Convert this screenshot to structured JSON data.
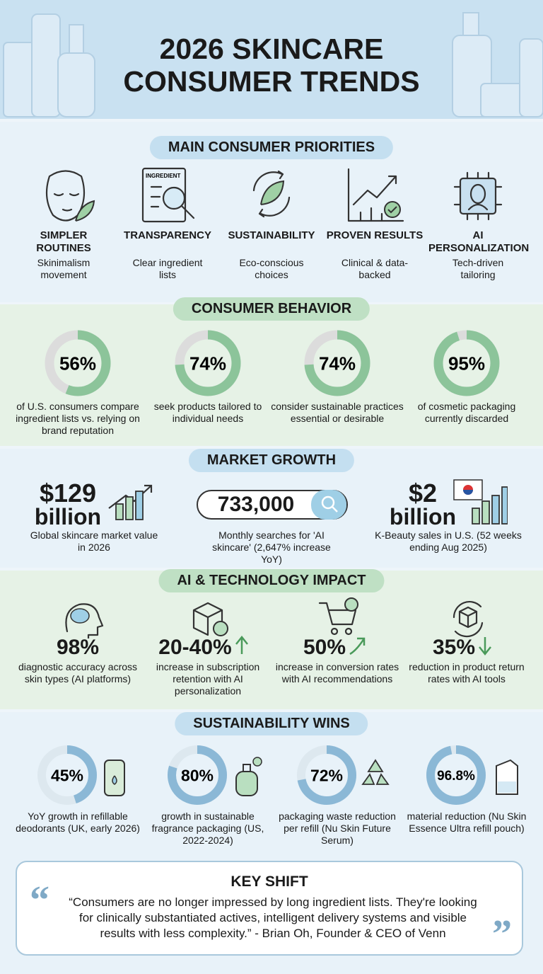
{
  "header": {
    "title_line1": "2026 SKINCARE",
    "title_line2": "CONSUMER TRENDS"
  },
  "priorities": {
    "heading": "MAIN CONSUMER PRIORITIES",
    "icon_label": "INGREDIENT",
    "items": [
      {
        "title": "SIMPLER ROUTINES",
        "subtitle": "Skinimalism movement"
      },
      {
        "title": "TRANSPARENCY",
        "subtitle": "Clear ingredient lists"
      },
      {
        "title": "SUSTAINABILITY",
        "subtitle": "Eco-conscious choices"
      },
      {
        "title": "PROVEN RESULTS",
        "subtitle": "Clinical & data-backed"
      },
      {
        "title": "AI PERSONALIZATION",
        "subtitle": "Tech-driven tailoring"
      }
    ]
  },
  "behavior": {
    "heading": "CONSUMER BEHAVIOR",
    "items": [
      {
        "stat": {
          "value": 56,
          "label": "56%"
        },
        "text": "of U.S. consumers compare ingredient lists vs. relying on brand reputation"
      },
      {
        "stat": {
          "value": 74,
          "label": "74%"
        },
        "text": "seek products tailored to individual needs"
      },
      {
        "stat": {
          "value": 74,
          "label": "74%"
        },
        "text": "consider sustainable practices essential or desirable"
      },
      {
        "stat": {
          "value": 95,
          "label": "95%"
        },
        "text": "of cosmetic packaging currently discarded"
      }
    ]
  },
  "market": {
    "heading": "MARKET GROWTH",
    "items": [
      {
        "stat": "$129",
        "unit": "billion",
        "text": "Global skincare market value in 2026"
      },
      {
        "stat": "733,000",
        "text": "Monthly searches for 'AI skincare' (2,647% increase YoY)"
      },
      {
        "stat": "$2",
        "unit": "billion",
        "text": "K-Beauty sales in U.S. (52 weeks ending Aug 2025)"
      }
    ]
  },
  "ai": {
    "heading": "AI & TECHNOLOGY IMPACT",
    "items": [
      {
        "stat": "98%",
        "text": "diagnostic accuracy across skin types (AI platforms)"
      },
      {
        "stat": "20-40%",
        "text": "increase in subscription retention with AI personalization"
      },
      {
        "stat": "50%",
        "text": "increase in conversion rates with AI recommendations"
      },
      {
        "stat": "35%",
        "text": "reduction in product return rates with AI tools"
      }
    ]
  },
  "sustainability": {
    "heading": "SUSTAINABILITY WINS",
    "items": [
      {
        "stat": {
          "value": 45,
          "label": "45%"
        },
        "text": "YoY growth in refillable deodorants (UK, early 2026)"
      },
      {
        "stat": {
          "value": 80,
          "label": "80%"
        },
        "text": "growth in sustainable fragrance packaging (US, 2022-2024)"
      },
      {
        "stat": {
          "value": 72,
          "label": "72%"
        },
        "text": "packaging waste reduction per refill (Nu Skin Future Serum)"
      },
      {
        "stat": {
          "value": 96.8,
          "label": "96.8%"
        },
        "text": "material reduction (Nu Skin Essence Ultra refill pouch)"
      }
    ]
  },
  "key_shift": {
    "heading": "KEY SHIFT",
    "quote": "“Consumers are no longer impressed by long ingredient lists. They're looking for clinically substantiated actives, intelligent delivery systems and visible results with less complexity.” - Brian Oh, Founder & CEO of Venn"
  }
}
